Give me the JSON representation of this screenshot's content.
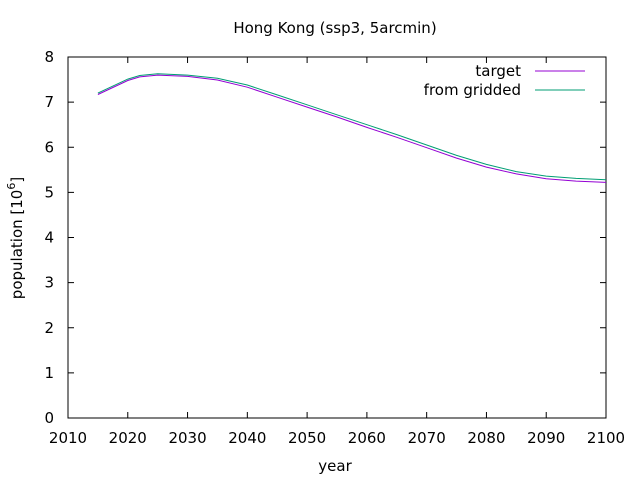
{
  "chart_data": {
    "type": "line",
    "title": "Hong Kong (ssp3, 5arcmin)",
    "xlabel": "year",
    "ylabel_base": "population [10",
    "ylabel_exp": "6",
    "ylabel_close": "]",
    "xlim": [
      2010,
      2100
    ],
    "ylim": [
      0,
      8
    ],
    "x_ticks": [
      2010,
      2020,
      2030,
      2040,
      2050,
      2060,
      2070,
      2080,
      2090,
      2100
    ],
    "y_ticks": [
      0,
      1,
      2,
      3,
      4,
      5,
      6,
      7,
      8
    ],
    "grid": false,
    "legend_position": "top-right",
    "series": [
      {
        "name": "target",
        "color": "#9400d3",
        "x": [
          2015,
          2020,
          2022,
          2025,
          2030,
          2035,
          2040,
          2045,
          2050,
          2055,
          2060,
          2065,
          2070,
          2075,
          2080,
          2085,
          2090,
          2095,
          2100
        ],
        "y": [
          7.17,
          7.48,
          7.56,
          7.6,
          7.57,
          7.49,
          7.33,
          7.11,
          6.89,
          6.67,
          6.44,
          6.22,
          5.99,
          5.76,
          5.56,
          5.41,
          5.3,
          5.25,
          5.22
        ]
      },
      {
        "name": "from gridded",
        "color": "#009e73",
        "x": [
          2015,
          2020,
          2022,
          2025,
          2030,
          2035,
          2040,
          2045,
          2050,
          2055,
          2060,
          2065,
          2070,
          2075,
          2080,
          2085,
          2090,
          2095,
          2100
        ],
        "y": [
          7.2,
          7.51,
          7.59,
          7.63,
          7.6,
          7.53,
          7.38,
          7.16,
          6.94,
          6.72,
          6.5,
          6.28,
          6.05,
          5.82,
          5.62,
          5.46,
          5.36,
          5.31,
          5.28
        ]
      }
    ]
  }
}
